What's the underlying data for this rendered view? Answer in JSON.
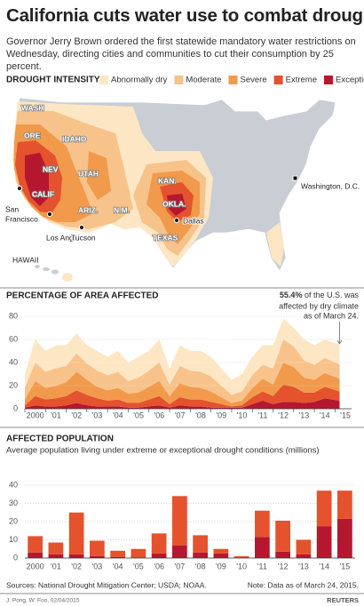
{
  "header": {
    "title": "California cuts water use to combat drought",
    "subtitle": "Governor Jerry Brown ordered the first statewide mandatory water restrictions on Wednesday, directing cities and communities to cut their consumption by 25 percent."
  },
  "map": {
    "title": "DROUGHT INTENSITY",
    "labels": [
      "WASH",
      "ORE",
      "IDAHO",
      "NEV",
      "UTAH",
      "CALIF",
      "ARIZ.",
      "N.M.",
      "KAN.",
      "OKLA.",
      "TEXAS",
      "HAWAII"
    ],
    "cities": [
      {
        "lines": [
          "San",
          "Francisco"
        ]
      },
      {
        "lines": [
          "Los Angeles"
        ]
      },
      {
        "lines": [
          "Tucson"
        ]
      },
      {
        "lines": [
          "Dallas"
        ]
      },
      {
        "lines": [
          "Washington, D.C."
        ]
      }
    ]
  },
  "chart_data": [
    {
      "type": "area",
      "title": "PERCENTAGE OF AREA AFFECTED",
      "annotation": {
        "highlight": "55.4%",
        "lines": [
          "of the U.S. was",
          "affected by dry climate",
          "as of March 24."
        ]
      },
      "x": [
        2000,
        2000.5,
        2001,
        2001.5,
        2002,
        2002.5,
        2003,
        2003.5,
        2004,
        2004.5,
        2005,
        2005.5,
        2006,
        2006.5,
        2007,
        2007.5,
        2008,
        2008.5,
        2009,
        2009.5,
        2010,
        2010.5,
        2011,
        2011.5,
        2012,
        2012.5,
        2013,
        2013.5,
        2014,
        2014.5,
        2015.22
      ],
      "series": [
        {
          "name": "Abnormally dry",
          "color": "#fde6c4",
          "values": [
            12,
            20,
            18,
            20,
            18,
            17,
            16,
            17,
            16,
            18,
            16,
            18,
            17,
            20,
            14,
            18,
            17,
            18,
            17,
            15,
            13,
            15,
            16,
            17,
            20,
            18,
            16,
            18,
            17,
            16,
            17
          ]
        },
        {
          "name": "Moderate",
          "color": "#f7c38b",
          "values": [
            10,
            16,
            14,
            15,
            14,
            16,
            14,
            14,
            13,
            14,
            11,
            13,
            14,
            16,
            10,
            15,
            14,
            14,
            13,
            10,
            7,
            8,
            11,
            12,
            14,
            20,
            18,
            15,
            13,
            13,
            12.4
          ]
        },
        {
          "name": "Severe",
          "color": "#f19a4b",
          "values": [
            5,
            13,
            10,
            11,
            12,
            16,
            13,
            10,
            9,
            10,
            8,
            9,
            11,
            13,
            7,
            12,
            11,
            10,
            9,
            6,
            3,
            4,
            8,
            11,
            10,
            19,
            17,
            13,
            11,
            12,
            11
          ]
        },
        {
          "name": "Extreme",
          "color": "#e4532e",
          "values": [
            2,
            8,
            6,
            7,
            8,
            11,
            9,
            7,
            5,
            6,
            4,
            4,
            6,
            8,
            3,
            7,
            6,
            6,
            5,
            3,
            1,
            2,
            6,
            8,
            7,
            15,
            13,
            9,
            8,
            10,
            8
          ]
        },
        {
          "name": "Exceptional",
          "color": "#b5182e",
          "values": [
            1,
            3,
            2,
            2,
            3,
            5,
            3,
            2,
            2,
            2,
            1,
            1,
            2,
            3,
            1,
            3,
            2,
            2,
            1,
            1,
            1,
            1,
            4,
            7,
            4,
            6,
            6,
            5,
            6,
            9,
            7
          ]
        }
      ],
      "xlim": [
        2000,
        2015.8
      ],
      "xticks": [
        {
          "value": 2000,
          "label": "2000"
        },
        {
          "value": 2001,
          "label": "'01"
        },
        {
          "value": 2002,
          "label": "'02"
        },
        {
          "value": 2003,
          "label": "'03"
        },
        {
          "value": 2004,
          "label": "'04"
        },
        {
          "value": 2005,
          "label": "'05"
        },
        {
          "value": 2006,
          "label": "'06"
        },
        {
          "value": 2007,
          "label": "'07"
        },
        {
          "value": 2008,
          "label": "'08"
        },
        {
          "value": 2009,
          "label": "'09"
        },
        {
          "value": 2010,
          "label": "'10"
        },
        {
          "value": 2011,
          "label": "'11"
        },
        {
          "value": 2012,
          "label": "'12"
        },
        {
          "value": 2013,
          "label": "'13"
        },
        {
          "value": 2014,
          "label": "'14"
        },
        {
          "value": 2015,
          "label": "'15"
        }
      ],
      "ylim": [
        0,
        80
      ],
      "yticks": [
        0,
        20,
        40,
        60,
        80
      ],
      "grid": true
    },
    {
      "type": "bar",
      "title": "AFFECTED POPULATION",
      "subtitle": "Average population living under extreme or exceptional drought conditions (millions)",
      "categories": [
        "2000",
        "'01",
        "'02",
        "'03",
        "'04",
        "'05",
        "'06",
        "'07",
        "'08",
        "'09",
        "'10",
        "'11",
        "'12",
        "'13",
        "'14",
        "'15"
      ],
      "series": [
        {
          "color": "#b5182e",
          "values": [
            3,
            2,
            2,
            1,
            0.5,
            0,
            2.5,
            7,
            3,
            2.5,
            0,
            11.5,
            3.5,
            2,
            17.5,
            21.5
          ]
        },
        {
          "color": "#e4532e",
          "values": [
            9,
            6.5,
            23,
            8.5,
            3.5,
            5,
            11,
            27,
            9.5,
            2.5,
            1,
            14.5,
            17,
            8,
            19.5,
            15.5
          ]
        }
      ],
      "ylim": [
        0,
        40
      ],
      "yticks": [
        0,
        10,
        20,
        30,
        40
      ],
      "grid": true
    }
  ],
  "footer": {
    "sources": "Sources: National Drought Mitigation Center; USDA; NOAA.",
    "note": "Note: Data as of March 24, 2015.",
    "credit": "J. Pong, W. Foo, 02/04/2015",
    "agency": "REUTERS"
  }
}
